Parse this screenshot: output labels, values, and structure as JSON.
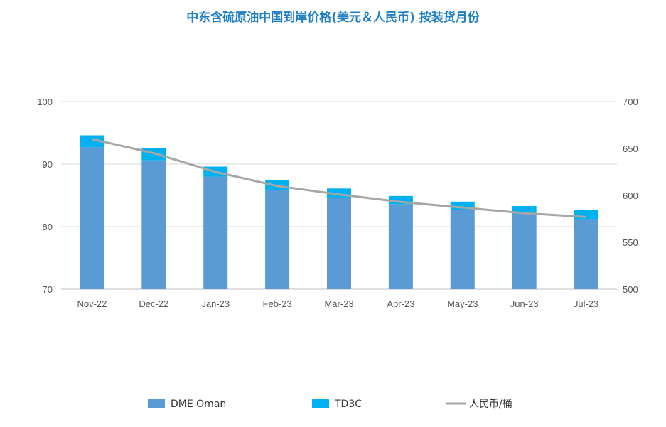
{
  "chart_data": {
    "type": "bar",
    "title": "中东含硫原油中国到岸价格(美元＆人民币) 按装货月份",
    "categories": [
      "Nov-22",
      "Dec-22",
      "Jan-23",
      "Feb-23",
      "Mar-23",
      "Apr-23",
      "May-23",
      "Jun-23",
      "Jul-23"
    ],
    "series": [
      {
        "name": "DME Oman",
        "kind": "stacked-bar",
        "axis": "left",
        "color": "#5b9bd5",
        "values": [
          92.7,
          90.6,
          88.0,
          85.9,
          84.6,
          83.6,
          82.7,
          82.2,
          81.2
        ]
      },
      {
        "name": "TD3C",
        "kind": "stacked-bar",
        "axis": "left",
        "color": "#00b0f0",
        "values": [
          1.9,
          1.9,
          1.6,
          1.5,
          1.5,
          1.3,
          1.3,
          1.1,
          1.5
        ]
      },
      {
        "name": "人民币/桶",
        "kind": "line",
        "axis": "right",
        "color": "#a6a6a6",
        "values": [
          660,
          645,
          625,
          610,
          601,
          593,
          587,
          581,
          577
        ]
      }
    ],
    "y_left": {
      "min": 70,
      "max": 100,
      "ticks": [
        70,
        80,
        90,
        100
      ]
    },
    "y_right": {
      "min": 500,
      "max": 700,
      "ticks": [
        500,
        550,
        600,
        650,
        700
      ]
    },
    "grid": true,
    "legend_position": "bottom"
  }
}
